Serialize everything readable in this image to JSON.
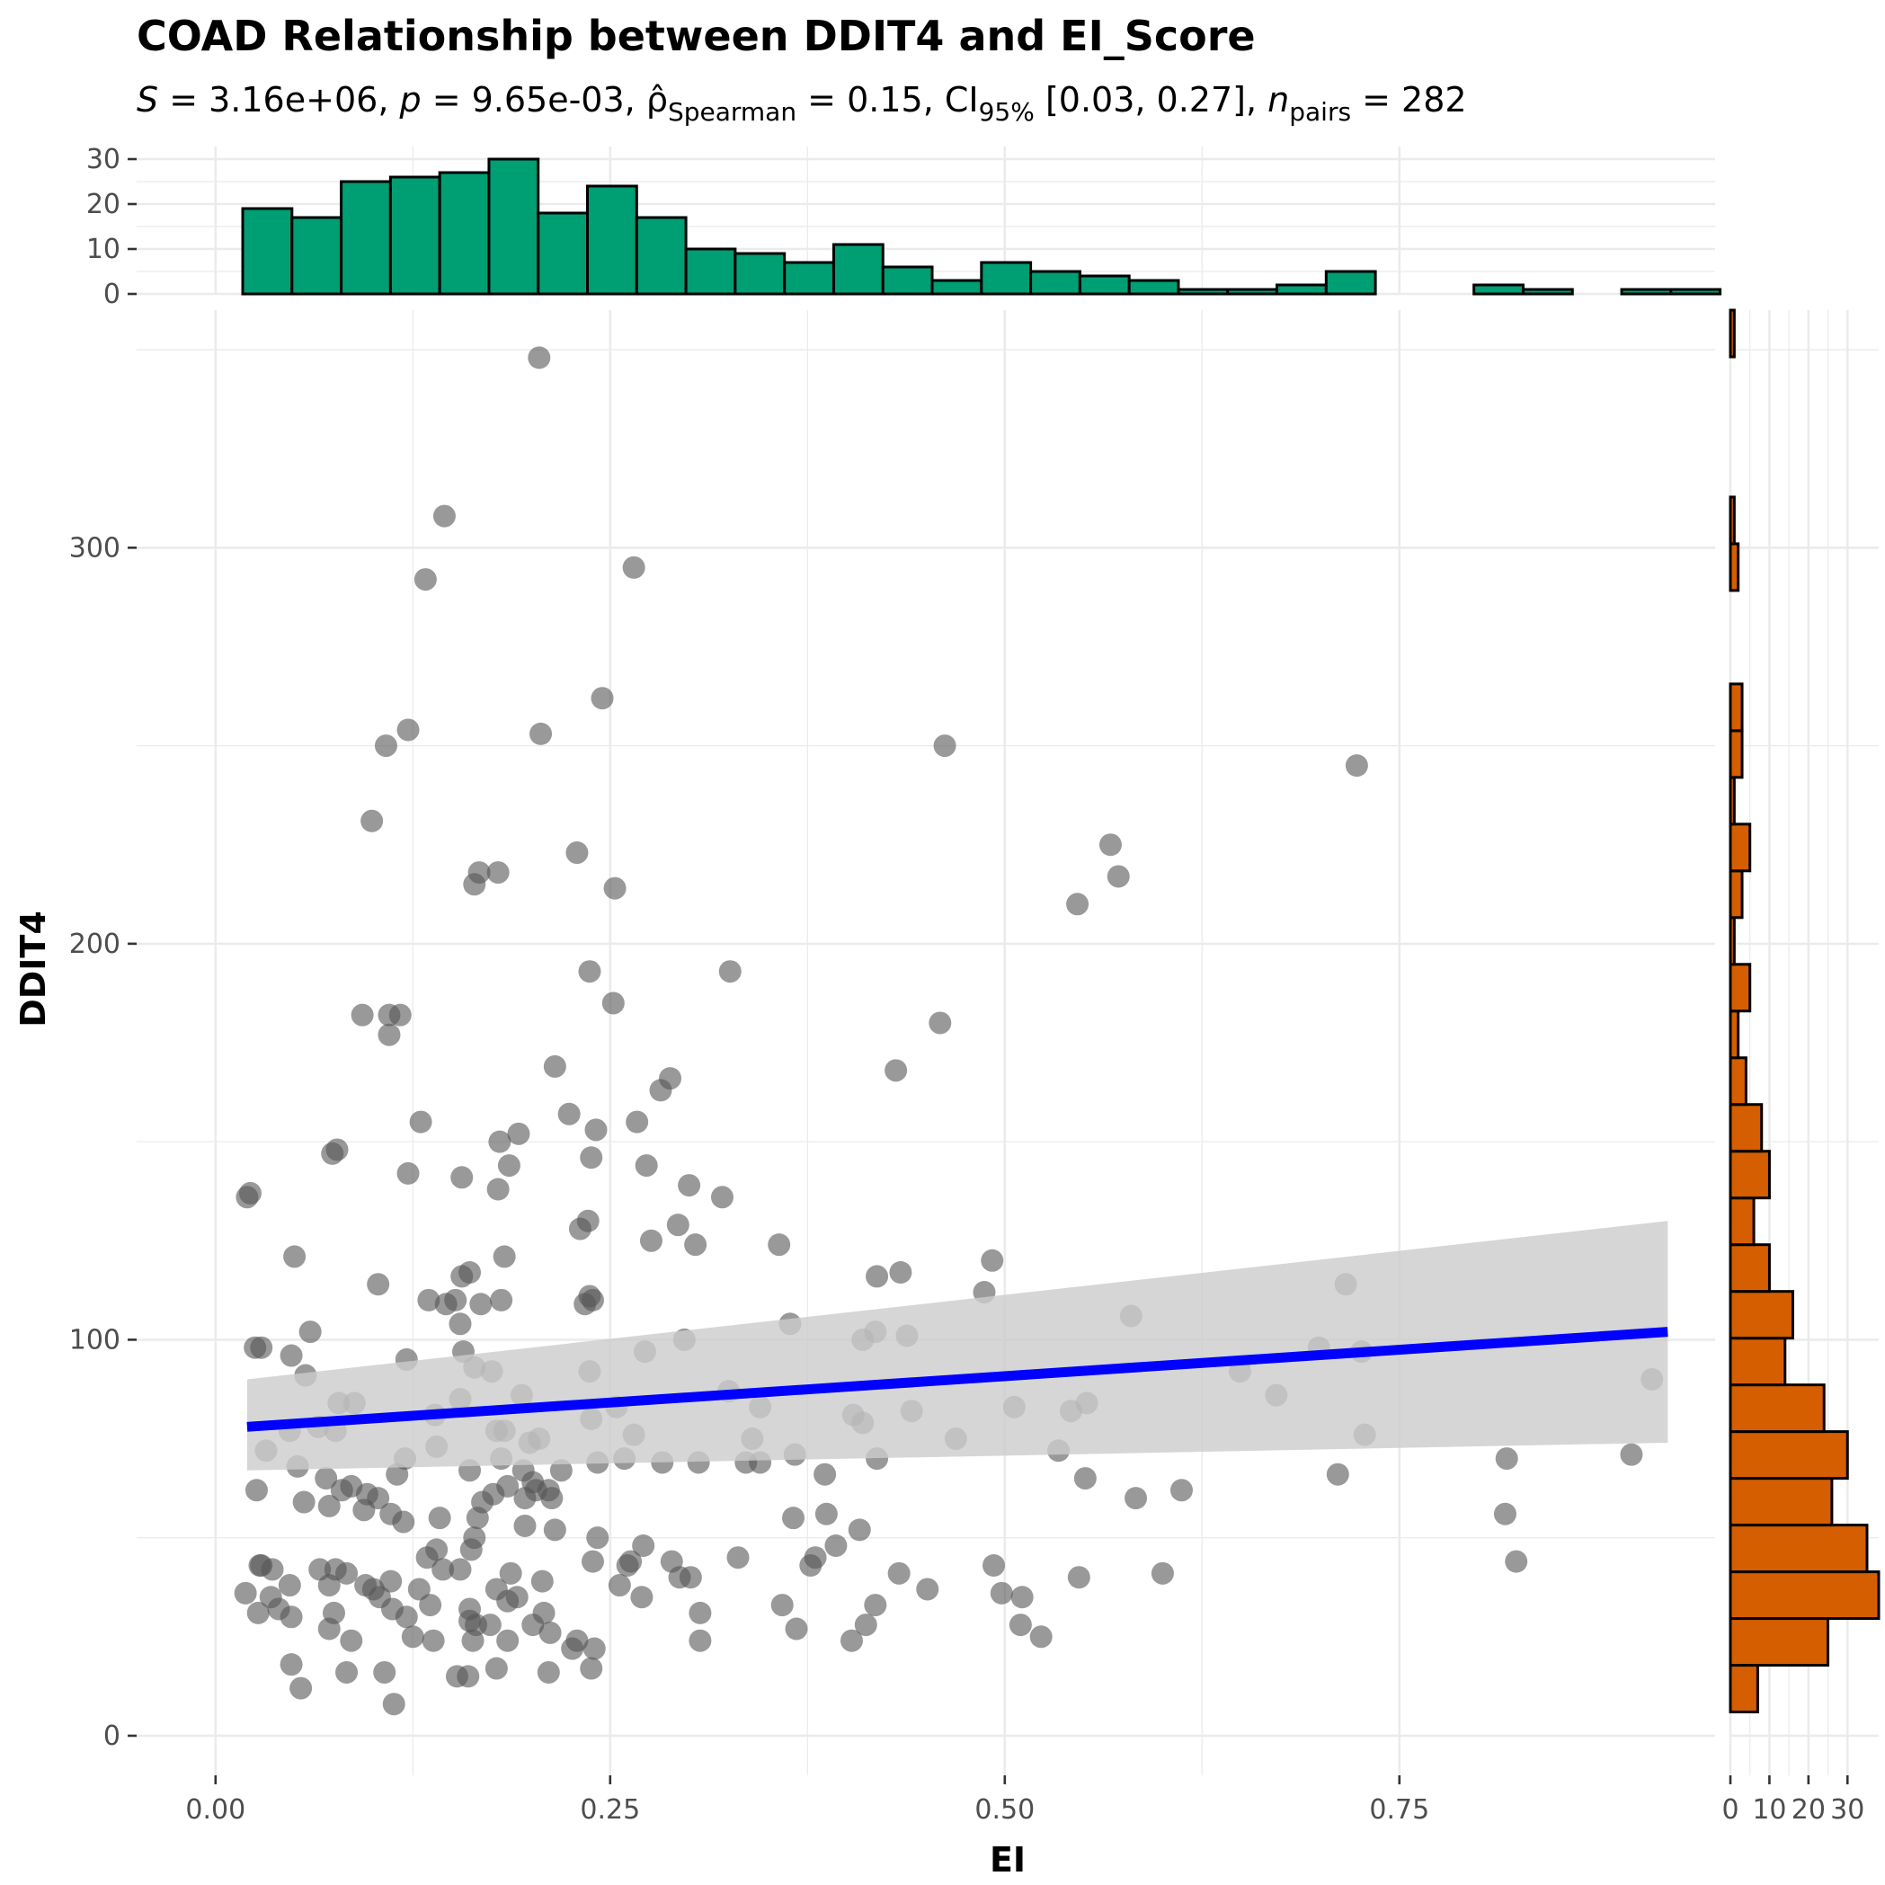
{
  "title": "COAD Relationship between DDIT4 and EI_Score",
  "subtitle": "S = 3.16e+06, p = 9.65e-03, ρ̂Spearman = 0.15, CI95% [0.03, 0.27], npairs = 282",
  "stats": {
    "S": "3.16e+06",
    "p": "9.65e-03",
    "rho": "0.15",
    "ci": "[0.03, 0.27]",
    "n": "282"
  },
  "colors": {
    "points": "#555555",
    "fit_line": "#0000ff",
    "ci_band": "#cccccc",
    "top_hist": "#009e73",
    "right_hist": "#d55e00"
  },
  "chart_data": [
    {
      "type": "scatter",
      "xlabel": "EI",
      "ylabel": "DDIT4",
      "xlim": [
        -0.05,
        0.95
      ],
      "ylim": [
        -10,
        360
      ],
      "x_ticks": [
        "0.00",
        "0.25",
        "0.50",
        "0.75"
      ],
      "y_ticks": [
        "0",
        "100",
        "200",
        "300"
      ],
      "grid": true,
      "fit": {
        "method": "linear",
        "x": [
          0.02,
          0.92
        ],
        "y": [
          78,
          102
        ],
        "ci_lower": [
          67,
          74
        ],
        "ci_upper": [
          90,
          130
        ]
      },
      "points": [
        [
          0.205,
          348
        ],
        [
          0.145,
          308
        ],
        [
          0.265,
          295
        ],
        [
          0.133,
          292
        ],
        [
          0.245,
          262
        ],
        [
          0.122,
          254
        ],
        [
          0.206,
          253
        ],
        [
          0.108,
          250
        ],
        [
          0.462,
          250
        ],
        [
          0.723,
          245
        ],
        [
          0.099,
          231
        ],
        [
          0.567,
          225
        ],
        [
          0.229,
          223
        ],
        [
          0.572,
          217
        ],
        [
          0.167,
          218
        ],
        [
          0.179,
          218
        ],
        [
          0.164,
          215
        ],
        [
          0.253,
          214
        ],
        [
          0.546,
          210
        ],
        [
          0.237,
          193
        ],
        [
          0.326,
          193
        ],
        [
          0.252,
          185
        ],
        [
          0.093,
          182
        ],
        [
          0.11,
          182
        ],
        [
          0.117,
          182
        ],
        [
          0.459,
          180
        ],
        [
          0.11,
          177
        ],
        [
          0.215,
          169
        ],
        [
          0.431,
          168
        ],
        [
          0.288,
          166
        ],
        [
          0.282,
          163
        ],
        [
          0.224,
          157
        ],
        [
          0.13,
          155
        ],
        [
          0.267,
          155
        ],
        [
          0.241,
          153
        ],
        [
          0.192,
          152
        ],
        [
          0.18,
          150
        ],
        [
          0.077,
          148
        ],
        [
          0.074,
          147
        ],
        [
          0.238,
          146
        ],
        [
          0.273,
          144
        ],
        [
          0.186,
          144
        ],
        [
          0.122,
          142
        ],
        [
          0.156,
          141
        ],
        [
          0.179,
          138
        ],
        [
          0.3,
          139
        ],
        [
          0.02,
          136
        ],
        [
          0.022,
          137
        ],
        [
          0.321,
          136
        ],
        [
          0.236,
          130
        ],
        [
          0.231,
          128
        ],
        [
          0.293,
          129
        ],
        [
          0.276,
          125
        ],
        [
          0.304,
          124
        ],
        [
          0.357,
          124
        ],
        [
          0.05,
          121
        ],
        [
          0.183,
          121
        ],
        [
          0.492,
          120
        ],
        [
          0.161,
          117
        ],
        [
          0.156,
          116
        ],
        [
          0.419,
          116
        ],
        [
          0.434,
          117
        ],
        [
          0.103,
          114
        ],
        [
          0.152,
          110
        ],
        [
          0.237,
          111
        ],
        [
          0.135,
          110
        ],
        [
          0.181,
          110
        ],
        [
          0.716,
          114
        ],
        [
          0.487,
          112
        ],
        [
          0.146,
          109
        ],
        [
          0.168,
          109
        ],
        [
          0.239,
          110
        ],
        [
          0.234,
          109
        ],
        [
          0.58,
          106
        ],
        [
          0.364,
          104
        ],
        [
          0.155,
          104
        ],
        [
          0.06,
          102
        ],
        [
          0.418,
          102
        ],
        [
          0.438,
          101
        ],
        [
          0.297,
          100
        ],
        [
          0.41,
          100
        ],
        [
          0.699,
          98
        ],
        [
          0.025,
          98
        ],
        [
          0.029,
          98
        ],
        [
          0.157,
          97
        ],
        [
          0.272,
          97
        ],
        [
          0.726,
          97
        ],
        [
          0.048,
          96
        ],
        [
          0.121,
          95
        ],
        [
          0.164,
          93
        ],
        [
          0.237,
          92
        ],
        [
          0.175,
          92
        ],
        [
          0.057,
          91
        ],
        [
          0.649,
          92
        ],
        [
          0.91,
          90
        ],
        [
          0.325,
          87
        ],
        [
          0.194,
          86
        ],
        [
          0.672,
          86
        ],
        [
          0.078,
          84
        ],
        [
          0.088,
          84
        ],
        [
          0.155,
          85
        ],
        [
          0.552,
          84
        ],
        [
          0.345,
          83
        ],
        [
          0.506,
          83
        ],
        [
          0.254,
          83
        ],
        [
          0.542,
          82
        ],
        [
          0.139,
          81
        ],
        [
          0.404,
          81
        ],
        [
          0.441,
          82
        ],
        [
          0.238,
          80
        ],
        [
          0.065,
          78
        ],
        [
          0.41,
          79
        ],
        [
          0.047,
          77
        ],
        [
          0.076,
          77
        ],
        [
          0.178,
          77
        ],
        [
          0.183,
          77
        ],
        [
          0.34,
          75
        ],
        [
          0.265,
          76
        ],
        [
          0.469,
          75
        ],
        [
          0.205,
          75
        ],
        [
          0.728,
          76
        ],
        [
          0.199,
          74
        ],
        [
          0.14,
          73
        ],
        [
          0.032,
          72
        ],
        [
          0.534,
          72
        ],
        [
          0.367,
          71
        ],
        [
          0.419,
          70
        ],
        [
          0.12,
          70
        ],
        [
          0.181,
          70
        ],
        [
          0.259,
          70
        ],
        [
          0.818,
          70
        ],
        [
          0.897,
          71
        ],
        [
          0.336,
          69
        ],
        [
          0.345,
          69
        ],
        [
          0.306,
          69
        ],
        [
          0.283,
          69
        ],
        [
          0.242,
          69
        ],
        [
          0.052,
          68
        ],
        [
          0.161,
          67
        ],
        [
          0.195,
          67
        ],
        [
          0.219,
          67
        ],
        [
          0.115,
          66
        ],
        [
          0.386,
          66
        ],
        [
          0.551,
          65
        ],
        [
          0.711,
          66
        ],
        [
          0.07,
          65
        ],
        [
          0.201,
          64
        ],
        [
          0.185,
          63
        ],
        [
          0.086,
          63
        ],
        [
          0.08,
          62
        ],
        [
          0.203,
          62
        ],
        [
          0.211,
          62
        ],
        [
          0.026,
          62
        ],
        [
          0.096,
          61
        ],
        [
          0.612,
          62
        ],
        [
          0.176,
          61
        ],
        [
          0.103,
          60
        ],
        [
          0.196,
          60
        ],
        [
          0.213,
          60
        ],
        [
          0.583,
          60
        ],
        [
          0.169,
          59
        ],
        [
          0.056,
          59
        ],
        [
          0.072,
          58
        ],
        [
          0.111,
          56
        ],
        [
          0.094,
          57
        ],
        [
          0.387,
          56
        ],
        [
          0.142,
          55
        ],
        [
          0.166,
          55
        ],
        [
          0.366,
          55
        ],
        [
          0.817,
          56
        ],
        [
          0.119,
          54
        ],
        [
          0.196,
          53
        ],
        [
          0.215,
          52
        ],
        [
          0.408,
          52
        ],
        [
          0.164,
          50
        ],
        [
          0.242,
          50
        ],
        [
          0.393,
          48
        ],
        [
          0.162,
          47
        ],
        [
          0.271,
          48
        ],
        [
          0.14,
          47
        ],
        [
          0.134,
          45
        ],
        [
          0.239,
          44
        ],
        [
          0.263,
          44
        ],
        [
          0.289,
          44
        ],
        [
          0.331,
          45
        ],
        [
          0.38,
          45
        ],
        [
          0.824,
          44
        ],
        [
          0.261,
          43
        ],
        [
          0.028,
          43
        ],
        [
          0.029,
          43
        ],
        [
          0.377,
          43
        ],
        [
          0.493,
          43
        ],
        [
          0.036,
          42
        ],
        [
          0.066,
          42
        ],
        [
          0.076,
          42
        ],
        [
          0.144,
          42
        ],
        [
          0.155,
          42
        ],
        [
          0.083,
          41
        ],
        [
          0.433,
          41
        ],
        [
          0.187,
          41
        ],
        [
          0.6,
          41
        ],
        [
          0.547,
          40
        ],
        [
          0.294,
          40
        ],
        [
          0.301,
          40
        ],
        [
          0.111,
          39
        ],
        [
          0.207,
          39
        ],
        [
          0.047,
          38
        ],
        [
          0.095,
          38
        ],
        [
          0.072,
          38
        ],
        [
          0.256,
          38
        ],
        [
          0.1,
          37
        ],
        [
          0.129,
          37
        ],
        [
          0.178,
          37
        ],
        [
          0.451,
          37
        ],
        [
          0.019,
          36
        ],
        [
          0.035,
          35
        ],
        [
          0.104,
          35
        ],
        [
          0.191,
          35
        ],
        [
          0.27,
          35
        ],
        [
          0.498,
          36
        ],
        [
          0.511,
          35
        ],
        [
          0.185,
          34
        ],
        [
          0.136,
          33
        ],
        [
          0.359,
          33
        ],
        [
          0.04,
          32
        ],
        [
          0.112,
          32
        ],
        [
          0.161,
          32
        ],
        [
          0.418,
          33
        ],
        [
          0.027,
          31
        ],
        [
          0.048,
          30
        ],
        [
          0.208,
          31
        ],
        [
          0.307,
          31
        ],
        [
          0.075,
          31
        ],
        [
          0.161,
          29
        ],
        [
          0.121,
          30
        ],
        [
          0.174,
          28
        ],
        [
          0.165,
          28
        ],
        [
          0.368,
          27
        ],
        [
          0.201,
          28
        ],
        [
          0.072,
          27
        ],
        [
          0.412,
          28
        ],
        [
          0.51,
          28
        ],
        [
          0.212,
          26
        ],
        [
          0.125,
          25
        ],
        [
          0.086,
          24
        ],
        [
          0.138,
          24
        ],
        [
          0.163,
          24
        ],
        [
          0.185,
          24
        ],
        [
          0.229,
          24
        ],
        [
          0.307,
          24
        ],
        [
          0.403,
          24
        ],
        [
          0.523,
          25
        ],
        [
          0.226,
          22
        ],
        [
          0.24,
          22
        ],
        [
          0.048,
          18
        ],
        [
          0.178,
          17
        ],
        [
          0.238,
          17
        ],
        [
          0.083,
          16
        ],
        [
          0.107,
          16
        ],
        [
          0.153,
          15
        ],
        [
          0.16,
          15
        ],
        [
          0.211,
          16
        ],
        [
          0.054,
          12
        ],
        [
          0.113,
          8
        ]
      ]
    },
    {
      "type": "bar",
      "orientation": "vertical",
      "variable": "EI",
      "ylim": [
        0,
        30
      ],
      "y_ticks": [
        "0",
        "10",
        "20",
        "30"
      ],
      "bins": [
        [
          0.0172,
          0.0484,
          19
        ],
        [
          0.0484,
          0.0796,
          17
        ],
        [
          0.0796,
          0.1108,
          25
        ],
        [
          0.1108,
          0.142,
          26
        ],
        [
          0.142,
          0.1732,
          27
        ],
        [
          0.1732,
          0.2044,
          30
        ],
        [
          0.2044,
          0.2356,
          18
        ],
        [
          0.2356,
          0.2668,
          24
        ],
        [
          0.2668,
          0.298,
          17
        ],
        [
          0.298,
          0.3292,
          10
        ],
        [
          0.3292,
          0.3604,
          9
        ],
        [
          0.3604,
          0.3916,
          7
        ],
        [
          0.3916,
          0.4228,
          11
        ],
        [
          0.4228,
          0.454,
          6
        ],
        [
          0.454,
          0.4852,
          3
        ],
        [
          0.4852,
          0.5164,
          7
        ],
        [
          0.5164,
          0.5476,
          5
        ],
        [
          0.5476,
          0.5788,
          4
        ],
        [
          0.5788,
          0.61,
          3
        ],
        [
          0.61,
          0.6412,
          1
        ],
        [
          0.6412,
          0.6724,
          1
        ],
        [
          0.6724,
          0.7036,
          2
        ],
        [
          0.7036,
          0.7348,
          5
        ],
        [
          0.7348,
          0.766,
          0
        ],
        [
          0.766,
          0.7972,
          0
        ],
        [
          0.7972,
          0.8284,
          2
        ],
        [
          0.8284,
          0.8596,
          1
        ],
        [
          0.8596,
          0.8908,
          0
        ],
        [
          0.8908,
          0.922,
          1
        ],
        [
          0.922,
          0.9532,
          1
        ]
      ]
    },
    {
      "type": "bar",
      "orientation": "horizontal",
      "variable": "DDIT4",
      "xlim": [
        0,
        38
      ],
      "x_ticks": [
        "0",
        "10",
        "20",
        "30"
      ],
      "bins": [
        [
          6,
          17.8,
          7
        ],
        [
          17.8,
          29.6,
          25
        ],
        [
          29.6,
          41.4,
          38
        ],
        [
          41.4,
          53.2,
          35
        ],
        [
          53.2,
          65,
          26
        ],
        [
          65,
          76.8,
          30
        ],
        [
          76.8,
          88.6,
          24
        ],
        [
          88.6,
          100.4,
          14
        ],
        [
          100.4,
          112.2,
          16
        ],
        [
          112.2,
          124,
          10
        ],
        [
          124,
          135.8,
          6
        ],
        [
          135.8,
          147.6,
          10
        ],
        [
          147.6,
          159.4,
          8
        ],
        [
          159.4,
          171.2,
          4
        ],
        [
          171.2,
          183,
          2
        ],
        [
          183,
          194.8,
          5
        ],
        [
          194.8,
          206.6,
          1
        ],
        [
          206.6,
          218.4,
          3
        ],
        [
          218.4,
          230.2,
          5
        ],
        [
          230.2,
          242,
          1
        ],
        [
          242,
          253.8,
          3
        ],
        [
          253.8,
          265.6,
          3
        ],
        [
          265.6,
          277.4,
          0
        ],
        [
          277.4,
          289.2,
          0
        ],
        [
          289.2,
          301,
          2
        ],
        [
          301,
          312.8,
          1
        ],
        [
          312.8,
          324.6,
          0
        ],
        [
          324.6,
          336.4,
          0
        ],
        [
          336.4,
          348.2,
          0
        ],
        [
          348.2,
          360,
          1
        ]
      ]
    }
  ]
}
